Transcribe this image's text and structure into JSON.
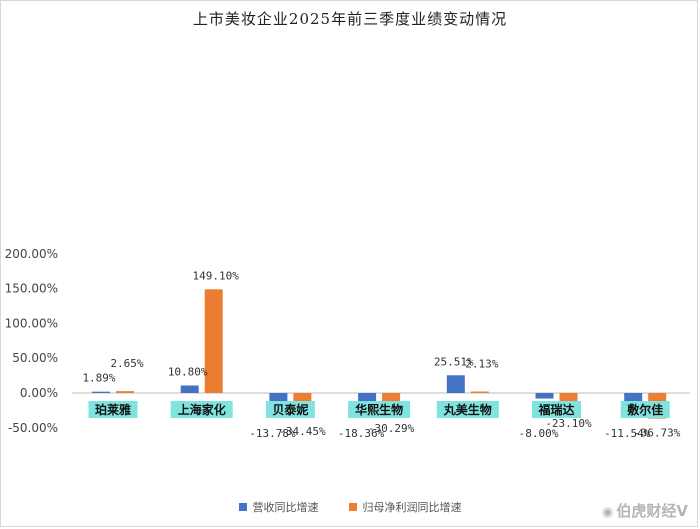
{
  "chart_data": {
    "type": "bar",
    "title": "上市美妆企业2025年前三季度业绩变动情况",
    "categories": [
      "珀莱雅",
      "上海家化",
      "贝泰妮",
      "华熙生物",
      "丸美生物",
      "福瑞达",
      "敷尔佳"
    ],
    "series": [
      {
        "name": "营收同比增速",
        "color": "#4472c4",
        "values": [
          1.89,
          10.8,
          -13.78,
          -18.36,
          25.51,
          -8.0,
          -11.54
        ],
        "labels": [
          "1.89%",
          "10.80%",
          "-13.78%",
          "-18.36%",
          "25.51%",
          "-8.00%",
          "-11.54%"
        ]
      },
      {
        "name": "归母净利润同比增速",
        "color": "#ed7d31",
        "values": [
          2.65,
          149.1,
          -34.45,
          -30.29,
          2.13,
          -23.1,
          -36.73
        ],
        "labels": [
          "2.65%",
          "149.10%",
          "-34.45%",
          "-30.29%",
          "2.13%",
          "-23.10%",
          "-36.73%"
        ]
      }
    ],
    "yticks": [
      200,
      150,
      100,
      50,
      0,
      -50
    ],
    "ytick_labels": [
      "200.00%",
      "150.00%",
      "100.00%",
      "50.00%",
      "0.00%",
      "-50.00%"
    ],
    "ylim": [
      -50,
      200
    ],
    "xlabel": "",
    "ylabel": "",
    "legend_position": "bottom",
    "grid": false
  },
  "watermark": {
    "icon": "weibo-icon",
    "text": "伯虎财经V"
  }
}
